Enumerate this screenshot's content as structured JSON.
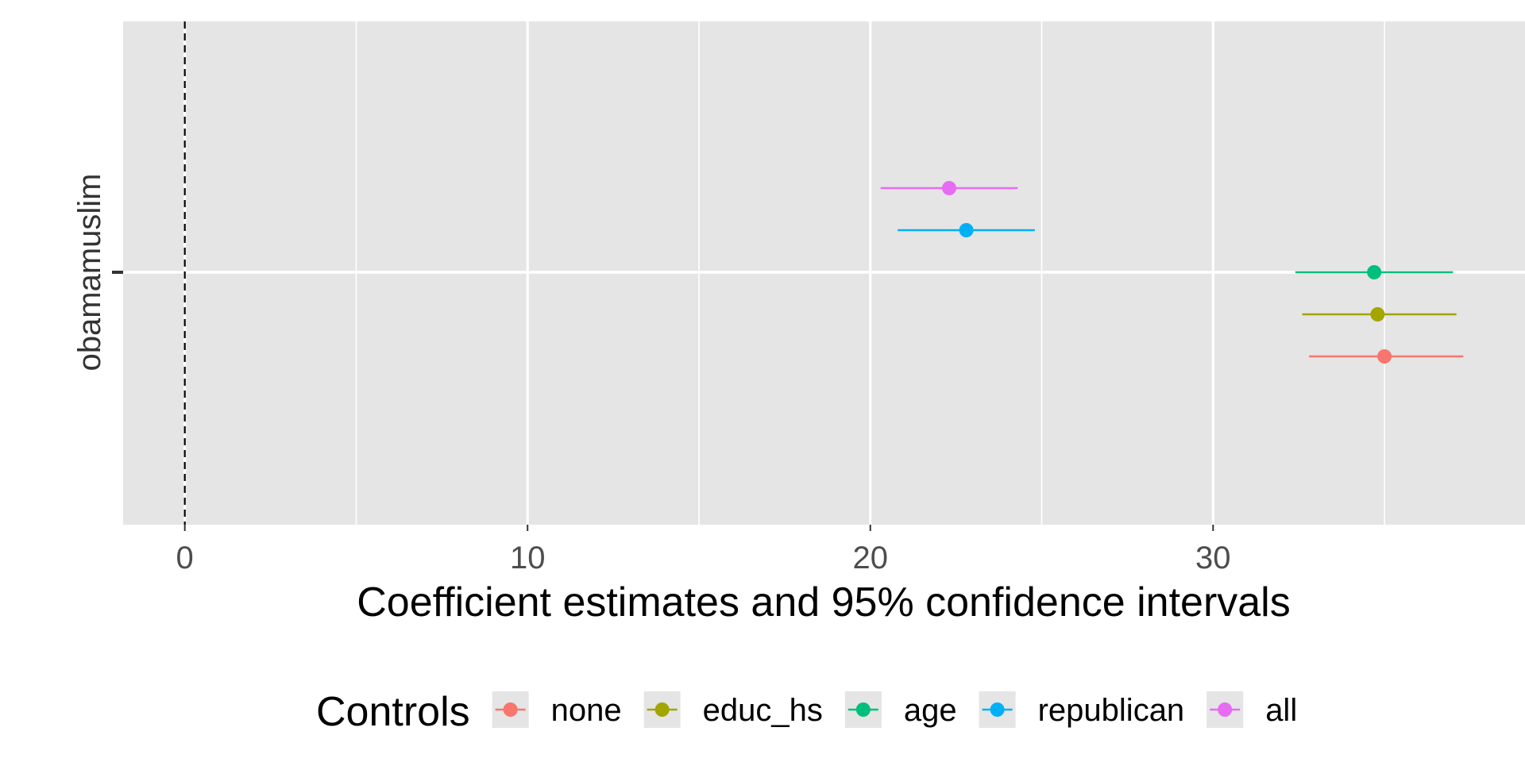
{
  "chart_data": {
    "type": "scatter",
    "subtype": "coefficient-plot",
    "xlabel": "Coefficient estimates and 95% confidence intervals",
    "ylabel": "",
    "categories": [
      "obamamuslim"
    ],
    "xlim": [
      -1.8,
      39.1
    ],
    "x_ticks": [
      0,
      10,
      20,
      30
    ],
    "x_tick_labels": [
      "0",
      "10",
      "20",
      "30"
    ],
    "reference_line": 0,
    "grid": true,
    "legend": {
      "title": "Controls",
      "position": "bottom"
    },
    "series": [
      {
        "name": "none",
        "color": "#F8766D",
        "estimate": 35.0,
        "ci": [
          32.8,
          37.3
        ]
      },
      {
        "name": "educ_hs",
        "color": "#A3A500",
        "estimate": 34.8,
        "ci": [
          32.6,
          37.1
        ]
      },
      {
        "name": "age",
        "color": "#00BF7D",
        "estimate": 34.7,
        "ci": [
          32.4,
          37.0
        ]
      },
      {
        "name": "republican",
        "color": "#00B0F6",
        "estimate": 22.8,
        "ci": [
          20.8,
          24.8
        ]
      },
      {
        "name": "all",
        "color": "#E76BF3",
        "estimate": 22.3,
        "ci": [
          20.3,
          24.3
        ]
      }
    ]
  }
}
